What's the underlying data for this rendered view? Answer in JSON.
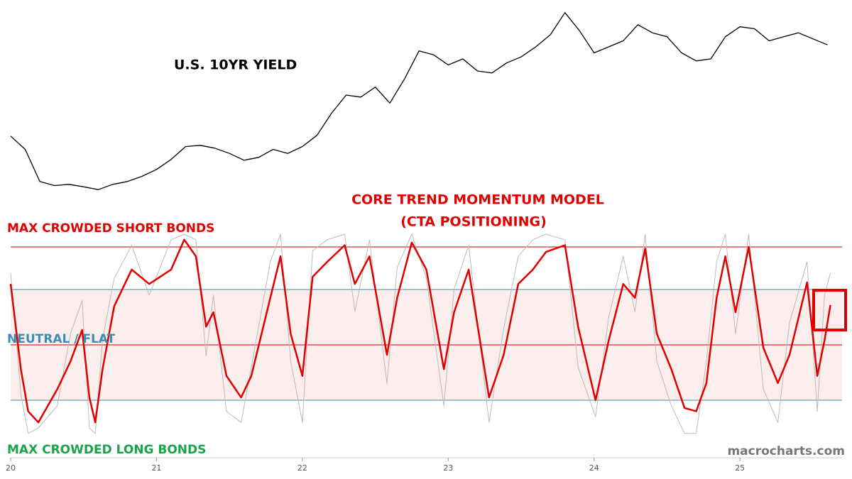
{
  "chart_data": [
    {
      "type": "line",
      "title": "U.S. 10YR YIELD",
      "color": "#000000",
      "x": [
        20,
        20.1,
        20.2,
        20.3,
        20.4,
        20.5,
        20.6,
        20.7,
        20.8,
        20.9,
        21,
        21.1,
        21.2,
        21.3,
        21.4,
        21.5,
        21.6,
        21.7,
        21.8,
        21.9,
        22,
        22.1,
        22.2,
        22.3,
        22.4,
        22.5,
        22.6,
        22.7,
        22.8,
        22.9,
        23,
        23.1,
        23.2,
        23.3,
        23.4,
        23.5,
        23.6,
        23.7,
        23.8,
        23.9,
        24,
        24.1,
        24.2,
        24.3,
        24.4,
        24.5,
        24.6,
        24.7,
        24.8,
        24.9,
        25,
        25.1,
        25.2,
        25.3,
        25.4,
        25.5,
        25.6
      ],
      "values": [
        1.88,
        1.55,
        0.75,
        0.65,
        0.68,
        0.62,
        0.55,
        0.68,
        0.75,
        0.88,
        1.05,
        1.3,
        1.62,
        1.65,
        1.58,
        1.45,
        1.28,
        1.35,
        1.55,
        1.45,
        1.62,
        1.9,
        2.45,
        2.9,
        2.85,
        3.1,
        2.7,
        3.3,
        4.0,
        3.9,
        3.65,
        3.8,
        3.5,
        3.45,
        3.7,
        3.85,
        4.1,
        4.4,
        4.95,
        4.5,
        3.95,
        4.1,
        4.25,
        4.65,
        4.45,
        4.35,
        3.95,
        3.75,
        3.8,
        4.35,
        4.6,
        4.55,
        4.25,
        4.35,
        4.45,
        4.3,
        4.15
      ],
      "xlim": [
        20,
        25.7
      ],
      "ylim": [
        0.5,
        5
      ]
    },
    {
      "type": "line",
      "title": "CORE TREND MOMENTUM MODEL",
      "subtitle": "(CTA POSITIONING)",
      "x": [
        20,
        20.07,
        20.12,
        20.19,
        20.32,
        20.41,
        20.49,
        20.54,
        20.58,
        20.63,
        20.71,
        20.83,
        20.95,
        21.1,
        21.19,
        21.27,
        21.34,
        21.39,
        21.48,
        21.58,
        21.65,
        21.78,
        21.85,
        21.92,
        22,
        22.07,
        22.17,
        22.29,
        22.36,
        22.46,
        22.58,
        22.65,
        22.75,
        22.85,
        22.97,
        23.04,
        23.14,
        23.28,
        23.38,
        23.48,
        23.58,
        23.67,
        23.8,
        23.89,
        24.01,
        24.1,
        24.2,
        24.28,
        24.35,
        24.43,
        24.53,
        24.62,
        24.7,
        24.77,
        24.84,
        24.9,
        24.97,
        25.06,
        25.16,
        25.26,
        25.34,
        25.46,
        25.53,
        25.58,
        25.62
      ],
      "series": [
        {
          "color": "#bbbbbb",
          "values": [
            1.3,
            -0.9,
            -1.6,
            -1.5,
            -1.1,
            0.2,
            0.8,
            -1.5,
            -1.6,
            0.1,
            1.2,
            1.8,
            0.9,
            1.9,
            2.0,
            1.9,
            -0.2,
            0.9,
            -1.2,
            -1.4,
            -0.4,
            1.5,
            2.0,
            -0.3,
            -1.4,
            1.7,
            1.9,
            2.0,
            0.6,
            1.9,
            -0.7,
            1.4,
            2.0,
            1.2,
            -1.1,
            1.0,
            1.8,
            -1.4,
            0.3,
            1.6,
            1.9,
            2.0,
            1.9,
            -0.4,
            -1.3,
            0.5,
            1.6,
            0.6,
            2.0,
            -0.3,
            -1.1,
            -1.6,
            -1.6,
            -0.3,
            1.5,
            2.0,
            0.2,
            2.0,
            -0.8,
            -1.4,
            0.4,
            1.5,
            -1.2,
            0.9,
            1.3
          ]
        },
        {
          "color": "#e00000",
          "values": [
            1.1,
            -0.44,
            -1.2,
            -1.4,
            -0.8,
            -0.3,
            0.27,
            -0.95,
            -1.4,
            -0.44,
            0.7,
            1.36,
            1.1,
            1.36,
            1.9,
            1.6,
            0.33,
            0.59,
            -0.56,
            -0.95,
            -0.56,
            0.85,
            1.6,
            0.2,
            -0.56,
            1.23,
            1.5,
            1.8,
            1.1,
            1.6,
            -0.18,
            0.85,
            1.85,
            1.36,
            -0.44,
            0.59,
            1.36,
            -0.95,
            -0.18,
            1.1,
            1.36,
            1.68,
            1.8,
            0.33,
            -1.0,
            0.08,
            1.1,
            0.85,
            1.74,
            0.2,
            -0.44,
            -1.14,
            -1.2,
            -0.69,
            0.85,
            1.6,
            0.59,
            1.77,
            -0.05,
            -0.69,
            -0.18,
            1.13,
            -0.56,
            0.08,
            0.72
          ]
        }
      ],
      "hlines": [
        {
          "value": 1.77,
          "color": "#cc0000"
        },
        {
          "value": 1,
          "color": "#3a8fb7"
        },
        {
          "value": 0,
          "color": "#cc0000"
        },
        {
          "value": -1,
          "color": "#3a8fb7"
        }
      ],
      "band": {
        "range": [
          -1,
          1
        ],
        "color": "#fdeeee"
      },
      "annotations": [
        {
          "text": "MAX CROWDED SHORT BONDS",
          "color": "#e00000",
          "value": 2.1
        },
        {
          "text": "NEUTRAL / FLAT",
          "color": "#3a8fb7",
          "value": 0.1
        },
        {
          "text": "MAX CROWDED LONG BONDS",
          "color": "#1aa34a",
          "value": -1.9
        }
      ],
      "xlim": [
        20,
        25.7
      ],
      "ylim": [
        -2,
        2
      ],
      "xticks": [
        20,
        21,
        22,
        23,
        24,
        25
      ]
    }
  ],
  "watermark": "macrocharts.com"
}
